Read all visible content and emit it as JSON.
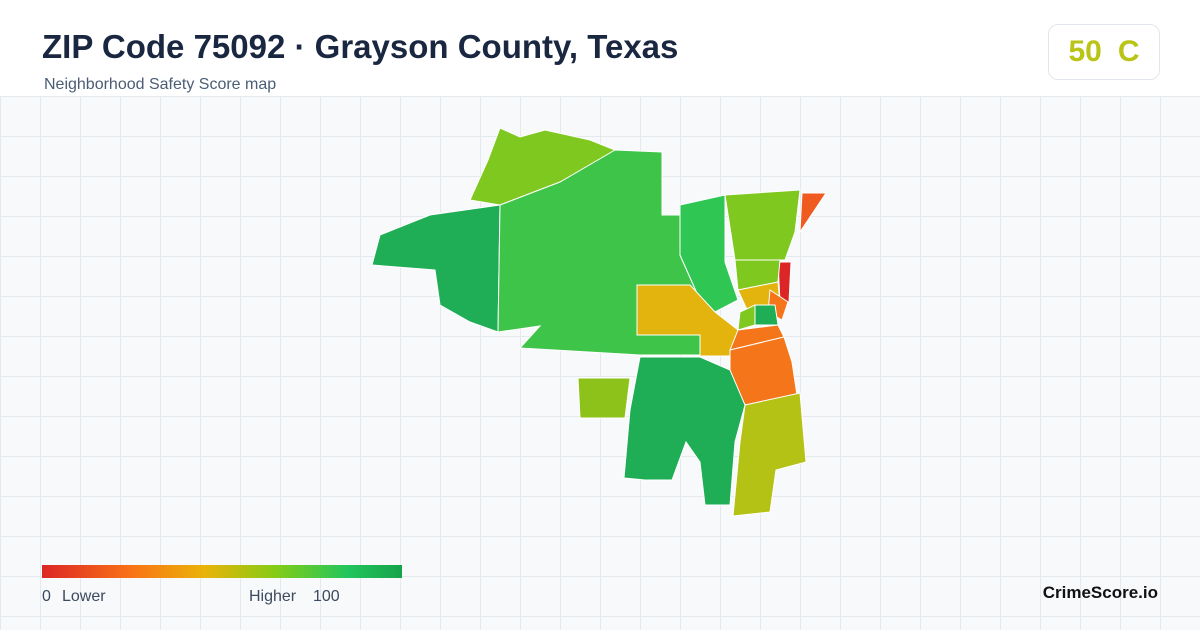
{
  "header": {
    "title": "ZIP Code 75092 · Grayson County, Texas",
    "subtitle": "Neighborhood Safety Score map"
  },
  "score": {
    "value": 50,
    "grade": "C"
  },
  "legend": {
    "min": 0,
    "low_label": "Lower",
    "high_label": "Higher",
    "max": 100
  },
  "brand": "CrimeScore.io"
}
